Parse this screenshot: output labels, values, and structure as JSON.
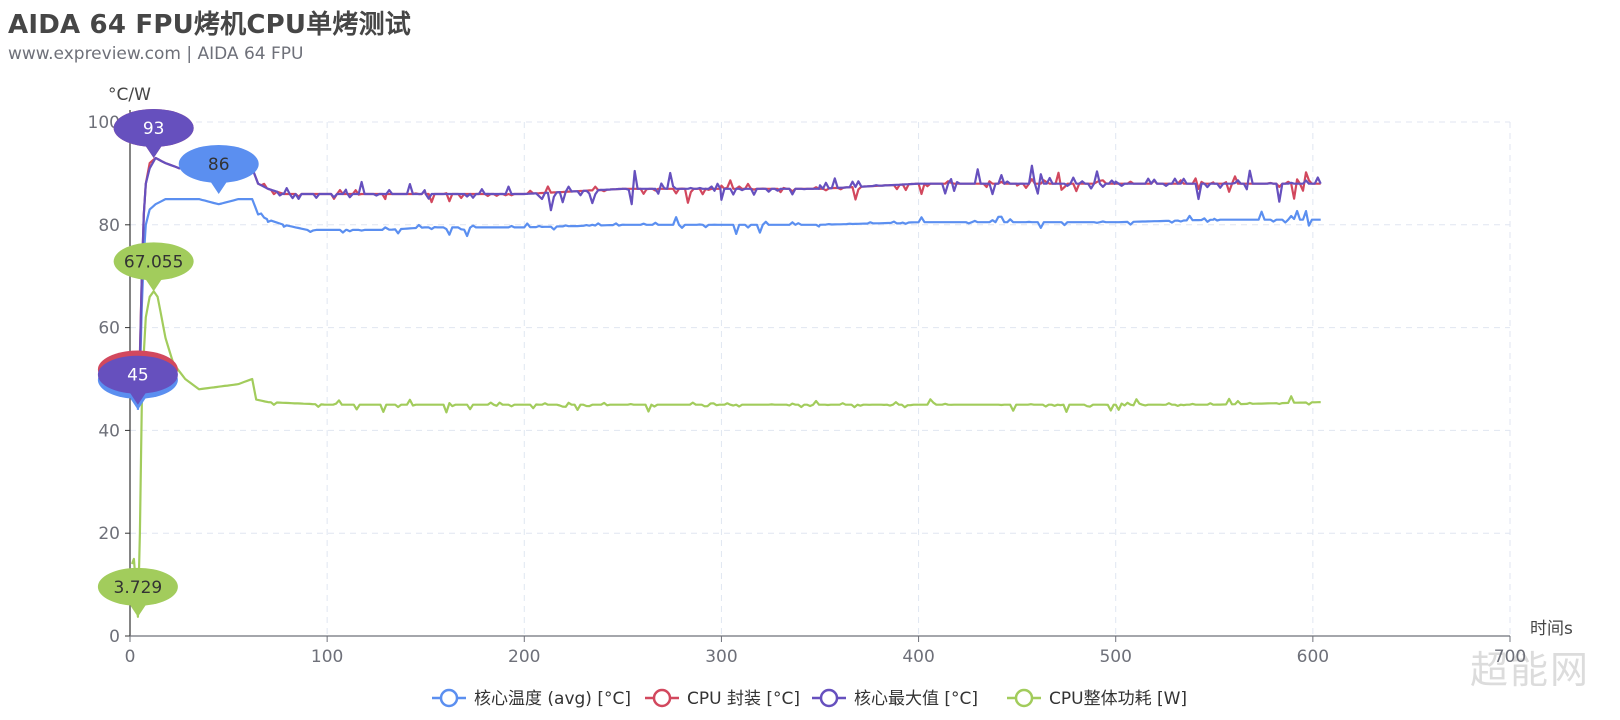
{
  "header": {
    "title": "AIDA 64 FPU烤机CPU单烤测试",
    "subtitle": "www.expreview.com  | AIDA 64 FPU"
  },
  "watermark": "超能网",
  "chart_data": {
    "type": "line",
    "title": "AIDA 64 FPU烤机CPU单烤测试",
    "subtitle": "www.expreview.com  | AIDA 64 FPU",
    "xlabel": "时间s",
    "ylabel": "°C/W",
    "xlim": [
      0,
      700
    ],
    "ylim": [
      0,
      100
    ],
    "x_ticks": [
      0,
      100,
      200,
      300,
      400,
      500,
      600,
      700
    ],
    "y_ticks": [
      0,
      20,
      40,
      60,
      80,
      100
    ],
    "grid": true,
    "legend_position": "bottom",
    "series": [
      {
        "name": "核心温度 (avg) [°C]",
        "color": "#5b8ff0",
        "points": [
          [
            4,
            44
          ],
          [
            5,
            50
          ],
          [
            6,
            64
          ],
          [
            7,
            74
          ],
          [
            8,
            80
          ],
          [
            10,
            83
          ],
          [
            13,
            84
          ],
          [
            18,
            85
          ],
          [
            25,
            85
          ],
          [
            35,
            85
          ],
          [
            45,
            84
          ],
          [
            55,
            85
          ],
          [
            62,
            85
          ],
          [
            65,
            82
          ],
          [
            70,
            81
          ],
          [
            78,
            80
          ],
          [
            90,
            79
          ],
          [
            110,
            79
          ],
          [
            130,
            79
          ],
          [
            150,
            79.5
          ],
          [
            180,
            79.5
          ],
          [
            200,
            79.5
          ],
          [
            250,
            80
          ],
          [
            300,
            80
          ],
          [
            350,
            80
          ],
          [
            400,
            80.5
          ],
          [
            450,
            80.5
          ],
          [
            500,
            80.5
          ],
          [
            550,
            81
          ],
          [
            580,
            81
          ],
          [
            604,
            81
          ]
        ],
        "max_label": "86",
        "max_at": [
          45,
          86
        ],
        "min_label": "44",
        "min_at": [
          4,
          44
        ]
      },
      {
        "name": "CPU 封装 [°C]",
        "color": "#d2485e",
        "points": [
          [
            4,
            46
          ],
          [
            5,
            55
          ],
          [
            6,
            70
          ],
          [
            7,
            82
          ],
          [
            8,
            88
          ],
          [
            10,
            92
          ],
          [
            13,
            93
          ],
          [
            18,
            92
          ],
          [
            25,
            91
          ],
          [
            35,
            91
          ],
          [
            45,
            91
          ],
          [
            55,
            91
          ],
          [
            62,
            91
          ],
          [
            65,
            88
          ],
          [
            70,
            87
          ],
          [
            78,
            86
          ],
          [
            90,
            86
          ],
          [
            110,
            86
          ],
          [
            130,
            86
          ],
          [
            150,
            86
          ],
          [
            180,
            86
          ],
          [
            200,
            86
          ],
          [
            250,
            87
          ],
          [
            300,
            87
          ],
          [
            350,
            87
          ],
          [
            400,
            88
          ],
          [
            450,
            88
          ],
          [
            500,
            88
          ],
          [
            550,
            88
          ],
          [
            580,
            88
          ],
          [
            604,
            88
          ]
        ],
        "max_label": "93",
        "max_at": [
          12,
          93
        ],
        "min_label": "46",
        "min_at": [
          4,
          46
        ]
      },
      {
        "name": "核心最大值 [°C]",
        "color": "#6650be",
        "points": [
          [
            4,
            45
          ],
          [
            5,
            54
          ],
          [
            6,
            70
          ],
          [
            7,
            82
          ],
          [
            8,
            88
          ],
          [
            10,
            91
          ],
          [
            13,
            93
          ],
          [
            18,
            92
          ],
          [
            25,
            91
          ],
          [
            35,
            91
          ],
          [
            45,
            91
          ],
          [
            55,
            91
          ],
          [
            62,
            91
          ],
          [
            65,
            88
          ],
          [
            70,
            87
          ],
          [
            78,
            86
          ],
          [
            90,
            86
          ],
          [
            110,
            86
          ],
          [
            130,
            86
          ],
          [
            150,
            86
          ],
          [
            180,
            86
          ],
          [
            200,
            86
          ],
          [
            250,
            87
          ],
          [
            300,
            87
          ],
          [
            350,
            87
          ],
          [
            400,
            88
          ],
          [
            450,
            88
          ],
          [
            500,
            88
          ],
          [
            550,
            88
          ],
          [
            580,
            88
          ],
          [
            604,
            88
          ]
        ],
        "max_label": "93",
        "max_at": [
          12,
          93
        ],
        "min_label": "45",
        "min_at": [
          4,
          45
        ]
      },
      {
        "name": "CPU整体功耗 [W]",
        "color": "#a2cc5c",
        "points": [
          [
            1,
            14
          ],
          [
            2,
            15
          ],
          [
            3,
            10
          ],
          [
            4,
            3.729
          ],
          [
            5,
            20
          ],
          [
            6,
            45
          ],
          [
            7,
            55
          ],
          [
            8,
            62
          ],
          [
            10,
            66
          ],
          [
            12,
            67.055
          ],
          [
            14,
            66
          ],
          [
            18,
            58
          ],
          [
            22,
            53
          ],
          [
            28,
            50
          ],
          [
            35,
            48
          ],
          [
            45,
            48.5
          ],
          [
            55,
            49
          ],
          [
            62,
            50
          ],
          [
            64,
            46
          ],
          [
            70,
            45.5
          ],
          [
            100,
            45
          ],
          [
            150,
            45
          ],
          [
            200,
            45
          ],
          [
            300,
            45
          ],
          [
            400,
            45
          ],
          [
            500,
            45
          ],
          [
            550,
            45
          ],
          [
            604,
            45.5
          ]
        ],
        "max_label": "67.055",
        "max_at": [
          12,
          67.055
        ],
        "min_label": "3.729",
        "min_at": [
          4,
          3.729
        ]
      }
    ]
  }
}
